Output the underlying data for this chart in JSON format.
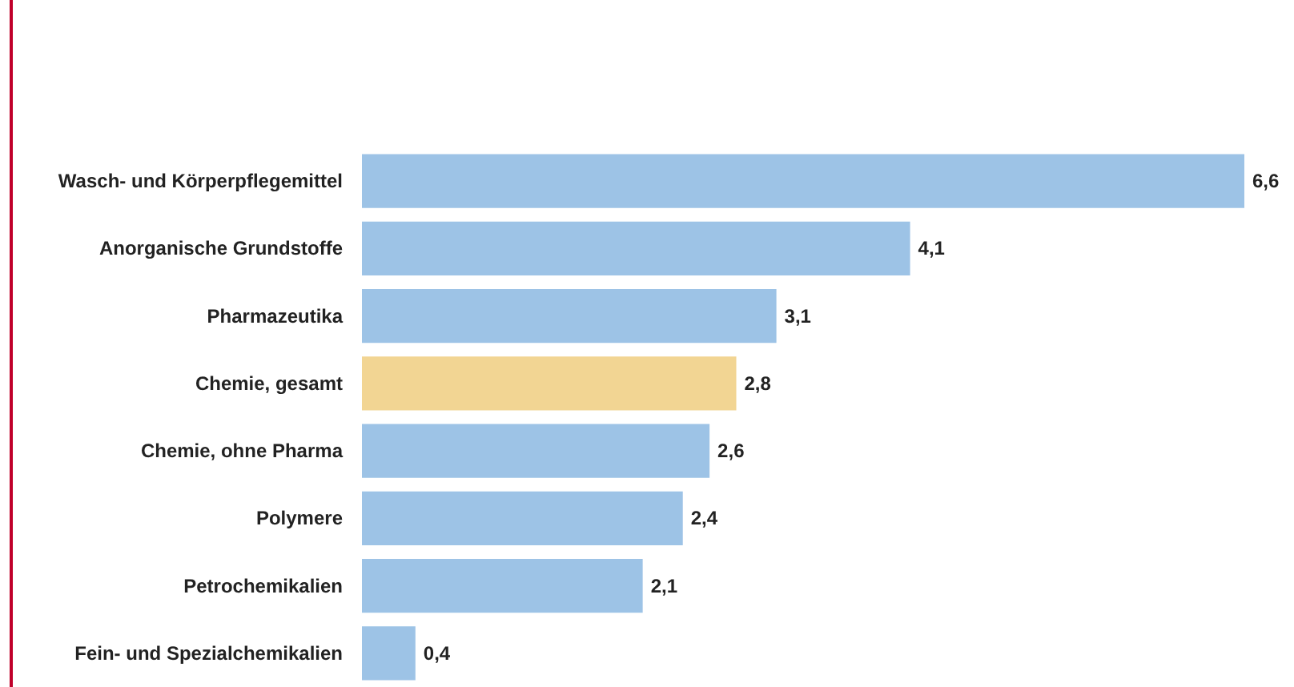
{
  "chart_data": {
    "type": "bar",
    "orientation": "horizontal",
    "value_labels": [
      "6,6",
      "4,1",
      "3,1",
      "2,8",
      "2,6",
      "2,4",
      "2,1",
      "0,4"
    ],
    "categories": [
      "Wasch- und Körperpflegemittel",
      "Anorganische Grundstoffe",
      "Pharmazeutika",
      "Chemie, gesamt",
      "Chemie, ohne Pharma",
      "Polymere",
      "Petrochemikalien",
      "Fein- und Spezialchemikalien"
    ],
    "values": [
      6.6,
      4.1,
      3.1,
      2.8,
      2.6,
      2.4,
      2.1,
      0.4
    ],
    "colors": [
      "#9dc3e6",
      "#9dc3e6",
      "#9dc3e6",
      "#f2d593",
      "#9dc3e6",
      "#9dc3e6",
      "#9dc3e6",
      "#9dc3e6"
    ]
  }
}
